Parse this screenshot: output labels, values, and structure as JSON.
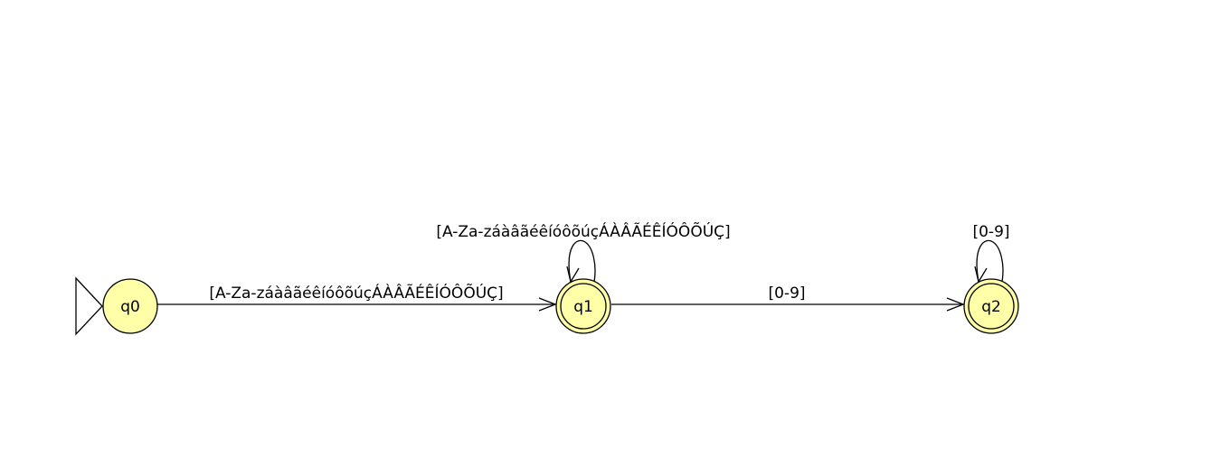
{
  "diagram": {
    "type": "finite-automaton",
    "colors": {
      "state_fill": "#ffff99",
      "stroke": "#000000",
      "background": "#ffffff"
    },
    "states": [
      {
        "id": "q0",
        "label": "q0",
        "initial": true,
        "accepting": false
      },
      {
        "id": "q1",
        "label": "q1",
        "initial": false,
        "accepting": true
      },
      {
        "id": "q2",
        "label": "q2",
        "initial": false,
        "accepting": true
      }
    ],
    "transitions": [
      {
        "from": "q0",
        "to": "q1",
        "label": "[A-Za-záàâãéêíóôõúçÁÀÂÃÉÊÍÓÔÕÚÇ]"
      },
      {
        "from": "q1",
        "to": "q1",
        "label": "[A-Za-záàâãéêíóôõúçÁÀÂÃÉÊÍÓÔÕÚÇ]"
      },
      {
        "from": "q1",
        "to": "q2",
        "label": "[0-9]"
      },
      {
        "from": "q2",
        "to": "q2",
        "label": "[0-9]"
      }
    ]
  }
}
